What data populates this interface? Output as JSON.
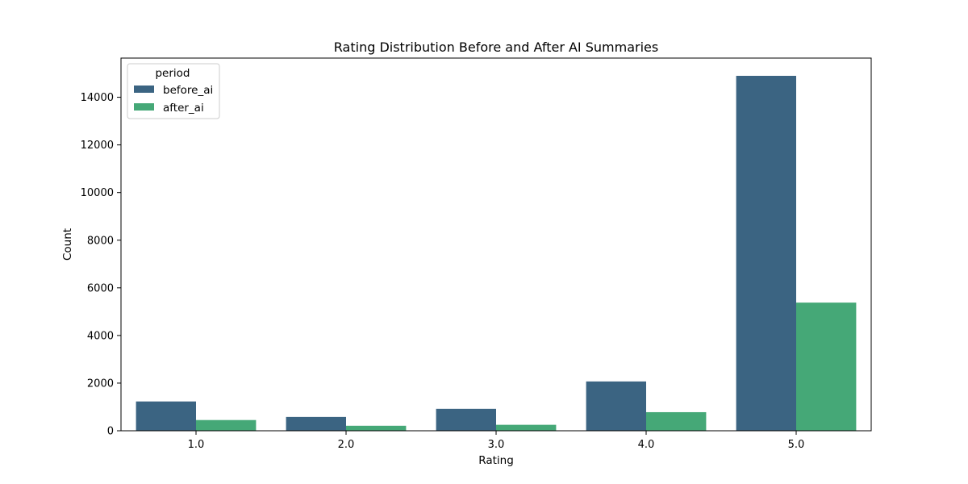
{
  "chart_data": {
    "type": "bar",
    "title": "Rating Distribution Before and After AI Summaries",
    "xlabel": "Rating",
    "ylabel": "Count",
    "categories": [
      "1.0",
      "2.0",
      "3.0",
      "4.0",
      "5.0"
    ],
    "series": [
      {
        "name": "before_ai",
        "color": "#3b6482",
        "values": [
          1230,
          580,
          920,
          2070,
          14900
        ]
      },
      {
        "name": "after_ai",
        "color": "#45a877",
        "values": [
          450,
          210,
          250,
          780,
          5380
        ]
      }
    ],
    "ylim": [
      0,
      15645
    ],
    "yticks": [
      0,
      2000,
      4000,
      6000,
      8000,
      10000,
      12000,
      14000
    ],
    "grid": false,
    "legend": {
      "title": "period",
      "placement": "top-left"
    }
  }
}
